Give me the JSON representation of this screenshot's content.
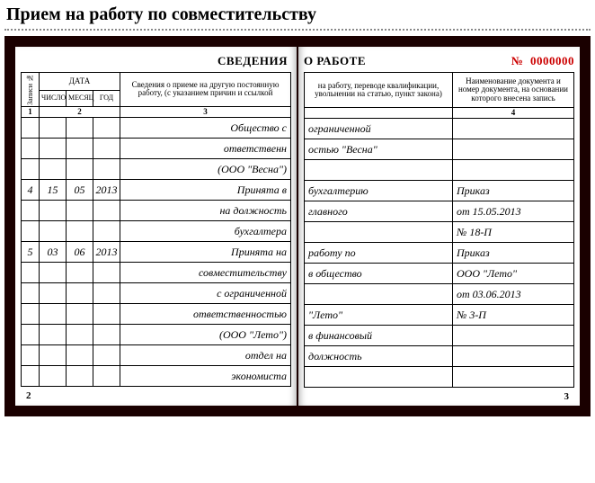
{
  "title": "Прием на работу по совместительству",
  "top_header_left": "СВЕДЕНИЯ",
  "top_header_right": "О РАБОТЕ",
  "doc_no_label": "№",
  "doc_no": "0000000",
  "head": {
    "rec": "Записи №",
    "date": "ДАТА",
    "day": "ЧИСЛО",
    "month": "МЕСЯЦ",
    "year": "ГОД",
    "col3a": "Сведения о приеме на другую постоянную работу, (с указанием причин и ссылкой",
    "col3b": "на работу, переводе квалификации, увольнении на статью, пункт закона)",
    "col4": "Наименование документа и номер документа, на основании которого внесена запись",
    "n1": "1",
    "n2": "2",
    "n3": "3",
    "n4": "4"
  },
  "rows_left": [
    {
      "rec": "",
      "d": "",
      "m": "",
      "y": "",
      "c3": "Общество с"
    },
    {
      "rec": "",
      "d": "",
      "m": "",
      "y": "",
      "c3": "ответственн"
    },
    {
      "rec": "",
      "d": "",
      "m": "",
      "y": "",
      "c3": "(ООО \"Весна\")"
    },
    {
      "rec": "4",
      "d": "15",
      "m": "05",
      "y": "2013",
      "c3": "Принята в"
    },
    {
      "rec": "",
      "d": "",
      "m": "",
      "y": "",
      "c3": "на должность"
    },
    {
      "rec": "",
      "d": "",
      "m": "",
      "y": "",
      "c3": "бухгалтера"
    },
    {
      "rec": "5",
      "d": "03",
      "m": "06",
      "y": "2013",
      "c3": "Принята на"
    },
    {
      "rec": "",
      "d": "",
      "m": "",
      "y": "",
      "c3": "совместительству"
    },
    {
      "rec": "",
      "d": "",
      "m": "",
      "y": "",
      "c3": "с ограниченной"
    },
    {
      "rec": "",
      "d": "",
      "m": "",
      "y": "",
      "c3": "ответственностью"
    },
    {
      "rec": "",
      "d": "",
      "m": "",
      "y": "",
      "c3": "(ООО \"Лето\")"
    },
    {
      "rec": "",
      "d": "",
      "m": "",
      "y": "",
      "c3": "отдел на"
    },
    {
      "rec": "",
      "d": "",
      "m": "",
      "y": "",
      "c3": "экономиста"
    }
  ],
  "rows_right": [
    {
      "c3": "ограниченной",
      "c4": ""
    },
    {
      "c3": "остью \"Весна\"",
      "c4": ""
    },
    {
      "c3": "",
      "c4": ""
    },
    {
      "c3": "бухгалтерию",
      "c4": "Приказ"
    },
    {
      "c3": "главного",
      "c4": "от 15.05.2013"
    },
    {
      "c3": "",
      "c4": "№ 18-П"
    },
    {
      "c3": "работу по",
      "c4": "Приказ"
    },
    {
      "c3": "в общество",
      "c4": "ООО \"Лето\""
    },
    {
      "c3": "",
      "c4": "от 03.06.2013"
    },
    {
      "c3": "\"Лето\"",
      "c4": "№ 3-П"
    },
    {
      "c3": "в финансовый",
      "c4": ""
    },
    {
      "c3": "должность",
      "c4": ""
    },
    {
      "c3": "",
      "c4": ""
    }
  ],
  "foot_left": "2",
  "foot_right": "3"
}
